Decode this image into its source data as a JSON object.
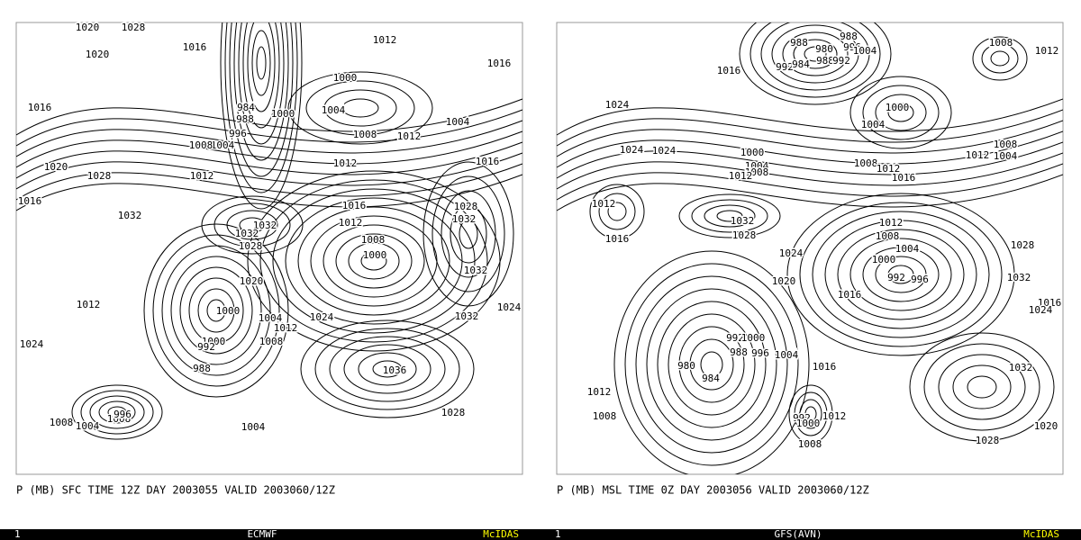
{
  "panels": [
    {
      "caption": "P (MB) SFC TIME 12Z DAY 2003055 VALID 2003060/12Z",
      "status": {
        "frame": "1",
        "model": "ECMWF",
        "brand": "McIDAS"
      },
      "contour_labels": [
        1020,
        1028,
        1016,
        1020,
        1012,
        1016,
        1000,
        1016,
        984,
        988,
        996,
        1004,
        1000,
        1004,
        1008,
        1012,
        1004,
        1008,
        1012,
        1016,
        1020,
        1028,
        1012,
        1016,
        1016,
        1028,
        1032,
        1032,
        1012,
        1032,
        1032,
        1028,
        1008,
        1000,
        1032,
        1020,
        1012,
        1000,
        1004,
        1012,
        1024,
        1032,
        1024,
        1024,
        1008,
        1000,
        992,
        988,
        1036,
        1028,
        1008,
        1004,
        1008,
        996,
        1004
      ]
    },
    {
      "caption": "P (MB) MSL TIME 0Z DAY 2003056 VALID 2003060/12Z",
      "status": {
        "frame": "1",
        "model": "GFS(AVN)",
        "brand": "McIDAS"
      },
      "contour_labels": [
        988,
        988,
        980,
        996,
        1004,
        992,
        984,
        988,
        992,
        1016,
        1008,
        1012,
        1024,
        1000,
        1004,
        1024,
        1024,
        1000,
        1004,
        1008,
        1012,
        1008,
        1012,
        1016,
        1008,
        1012,
        1004,
        1012,
        1032,
        1028,
        1016,
        1012,
        1008,
        1004,
        1024,
        1000,
        992,
        996,
        1028,
        1032,
        1020,
        1016,
        1016,
        1024,
        992,
        1000,
        988,
        996,
        1004,
        980,
        984,
        1016,
        1032,
        1012,
        1008,
        992,
        1000,
        1012,
        1008,
        1020,
        1028
      ]
    }
  ]
}
